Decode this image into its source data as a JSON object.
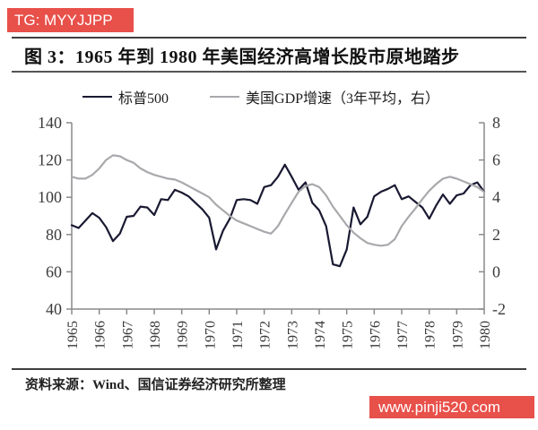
{
  "watermark_top": {
    "text": "TG: MYYJJPP"
  },
  "watermark_bottom": {
    "text": "www.pinji520.com"
  },
  "figure": {
    "title": "图 3：1965 年到 1980 年美国经济高增长股市原地踏步",
    "source": "资料来源：Wind、国信证券经济研究所整理"
  },
  "colors": {
    "banner_bg": "#e8504a",
    "banner_text": "#ffffff",
    "sp500_line": "#191932",
    "gdp_line": "#a9a9ad",
    "axis": "#8a8a8a",
    "tick_text": "#3a3a3a",
    "rule": "#3f3f3f"
  },
  "chart_data": {
    "type": "line",
    "title": "图 3：1965 年到 1980 年美国经济高增长股市原地踏步",
    "legend_position": "top",
    "grid": false,
    "axis_color": "#8a8a8a",
    "tick_color": "#3a3a3a",
    "legend": [
      {
        "label": "标普500",
        "color": "#191932"
      },
      {
        "label": "美国GDP增速（3年平均，右）",
        "color": "#a9a9ad"
      }
    ],
    "left_axis": {
      "min": 40,
      "max": 140,
      "ticks": [
        140,
        120,
        100,
        80,
        60,
        40
      ]
    },
    "right_axis": {
      "min": -2,
      "max": 8,
      "ticks": [
        8,
        6,
        4,
        2,
        0,
        -2
      ]
    },
    "x_axis": {
      "min": 1965,
      "max": 1980,
      "ticks": [
        1965,
        1966,
        1967,
        1968,
        1969,
        1970,
        1971,
        1972,
        1973,
        1974,
        1975,
        1976,
        1977,
        1978,
        1979,
        1980
      ]
    },
    "x": [
      1965,
      1965.25,
      1965.5,
      1965.75,
      1966,
      1966.25,
      1966.5,
      1966.75,
      1967,
      1967.25,
      1967.5,
      1967.75,
      1968,
      1968.25,
      1968.5,
      1968.75,
      1969,
      1969.25,
      1969.5,
      1969.75,
      1970,
      1970.25,
      1970.5,
      1970.75,
      1971,
      1971.25,
      1971.5,
      1971.75,
      1972,
      1972.25,
      1972.5,
      1972.75,
      1973,
      1973.25,
      1973.5,
      1973.75,
      1974,
      1974.25,
      1974.5,
      1974.75,
      1975,
      1975.25,
      1975.5,
      1975.75,
      1976,
      1976.25,
      1976.5,
      1976.75,
      1977,
      1977.25,
      1977.5,
      1977.75,
      1978,
      1978.25,
      1978.5,
      1978.75,
      1979,
      1979.25,
      1979.5,
      1979.75,
      1980
    ],
    "series": [
      {
        "name": "标普500",
        "axis": "left",
        "color": "#191932",
        "width": 2.2,
        "values": [
          85,
          83.5,
          87.5,
          91.5,
          89,
          84,
          76.5,
          80.5,
          89.5,
          90,
          95,
          94.5,
          90.5,
          99,
          98.5,
          104,
          102.5,
          100.5,
          97,
          93.5,
          89,
          72,
          82,
          88.5,
          98.5,
          99,
          98.5,
          96.5,
          105.5,
          106.5,
          111,
          117.5,
          111,
          104,
          108,
          97,
          93,
          84.5,
          64,
          63,
          72,
          94.5,
          85.5,
          89.5,
          100.5,
          103,
          104.5,
          106.5,
          99,
          100.5,
          97.5,
          94.5,
          88.5,
          95.5,
          101.5,
          96.5,
          101,
          102,
          106.5,
          108,
          103
        ]
      },
      {
        "name": "美国GDP增速（3年平均，右）",
        "axis": "right",
        "color": "#a9a9ad",
        "width": 2.2,
        "values": [
          5.1,
          5.0,
          5.0,
          5.2,
          5.55,
          6.0,
          6.25,
          6.2,
          6.0,
          5.85,
          5.55,
          5.35,
          5.2,
          5.1,
          5.0,
          4.95,
          4.8,
          4.6,
          4.4,
          4.2,
          4.0,
          3.6,
          3.3,
          3.0,
          2.75,
          2.6,
          2.45,
          2.3,
          2.15,
          2.05,
          2.45,
          3.1,
          3.7,
          4.3,
          4.6,
          4.7,
          4.55,
          4.1,
          3.5,
          3.0,
          2.5,
          2.1,
          1.8,
          1.55,
          1.45,
          1.4,
          1.45,
          1.75,
          2.45,
          2.95,
          3.4,
          3.9,
          4.35,
          4.7,
          5.0,
          5.1,
          5.0,
          4.85,
          4.7,
          4.55,
          4.28
        ]
      }
    ]
  }
}
